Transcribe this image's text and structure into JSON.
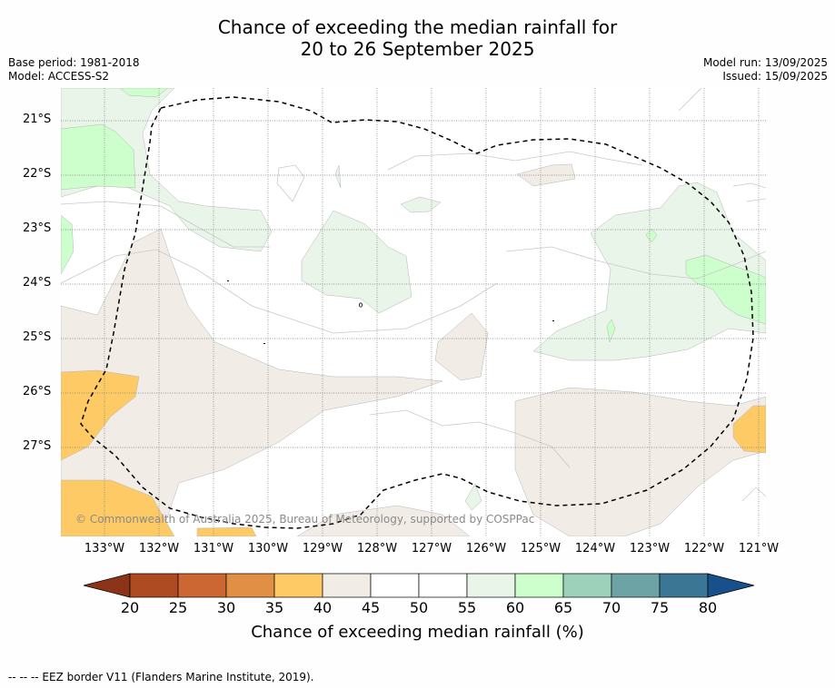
{
  "title": {
    "line1": "Chance of exceeding the median rainfall for",
    "line2": "20 to 26 September 2025"
  },
  "meta": {
    "base_period": "Base period: 1981-2018",
    "model": "Model: ACCESS-S2",
    "model_run": "Model run: 13/09/2025",
    "issued": "Issued: 15/09/2025"
  },
  "map": {
    "latitude_labels": [
      "21°S",
      "22°S",
      "23°S",
      "24°S",
      "25°S",
      "26°S",
      "27°S"
    ],
    "longitude_labels": [
      "133°W",
      "132°W",
      "131°W",
      "130°W",
      "129°W",
      "128°W",
      "127°W",
      "126°W",
      "125°W",
      "124°W",
      "123°W",
      "122°W",
      "121°W"
    ],
    "copyright": "© Commonwealth of Australia 2025, Bureau of Meteorology, supported by COSPPac",
    "category_colors": {
      "20-25": "#ae4b23",
      "25-30": "#cc6734",
      "30-35": "#e08f45",
      "35-40": "#fdca65",
      "40-45": "#f1ece5",
      "45-55": "#ffffff",
      "55-60": "#e9f5e9",
      "60-65": "#ccffcc",
      "65-70": "#9dd1b9",
      "70-75": "#6ea3a5",
      "75-80": "#3b7694",
      "ocean_neutral": "#ffffff"
    }
  },
  "colorbar": {
    "ticks": [
      "20",
      "25",
      "30",
      "35",
      "40",
      "45",
      "50",
      "55",
      "60",
      "65",
      "70",
      "75",
      "80"
    ],
    "colors": [
      "#ae4b23",
      "#cc6734",
      "#e08f45",
      "#fdca65",
      "#f1ece5",
      "#ffffff",
      "#ffffff",
      "#e9f5e9",
      "#ccffcc",
      "#9dd1b9",
      "#6ea3a5",
      "#3b7694"
    ],
    "low_extend_color": "#8b3418",
    "high_extend_color": "#17508a",
    "label": "Chance of exceeding median rainfall (%)"
  },
  "footer": "--  --  -- EEZ border V11 (Flanders Marine Institute, 2019)."
}
